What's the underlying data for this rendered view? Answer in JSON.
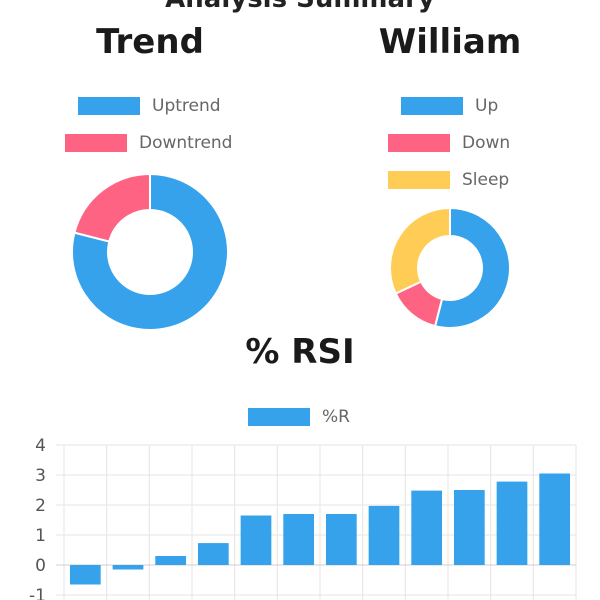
{
  "header": {
    "partial_title": "Analysis Summary"
  },
  "colors": {
    "blue": "#36a2eb",
    "red": "#ff6384",
    "yellow": "#ffcd56"
  },
  "chart_data": [
    {
      "type": "pie",
      "title": "Trend",
      "labels": [
        "Uptrend",
        "Downtrend"
      ],
      "values": [
        79,
        21
      ],
      "colors": [
        "#36a2eb",
        "#ff6384"
      ],
      "legend": "top"
    },
    {
      "type": "pie",
      "title": "William",
      "labels": [
        "Up",
        "Down",
        "Sleep"
      ],
      "values": [
        54,
        14,
        32
      ],
      "colors": [
        "#36a2eb",
        "#ff6384",
        "#ffcd56"
      ],
      "legend": "top"
    },
    {
      "type": "bar",
      "title": "% RSI",
      "series": [
        {
          "name": "%R",
          "values": [
            -0.65,
            -0.15,
            0.3,
            0.73,
            1.65,
            1.7,
            1.7,
            1.97,
            2.48,
            2.5,
            2.78,
            3.05
          ]
        }
      ],
      "ylim": [
        -1,
        4
      ],
      "yticks": [
        "4",
        "3",
        "2",
        "1",
        "0",
        "-1"
      ],
      "grid": true,
      "legend": "top",
      "color": "#36a2eb"
    }
  ]
}
